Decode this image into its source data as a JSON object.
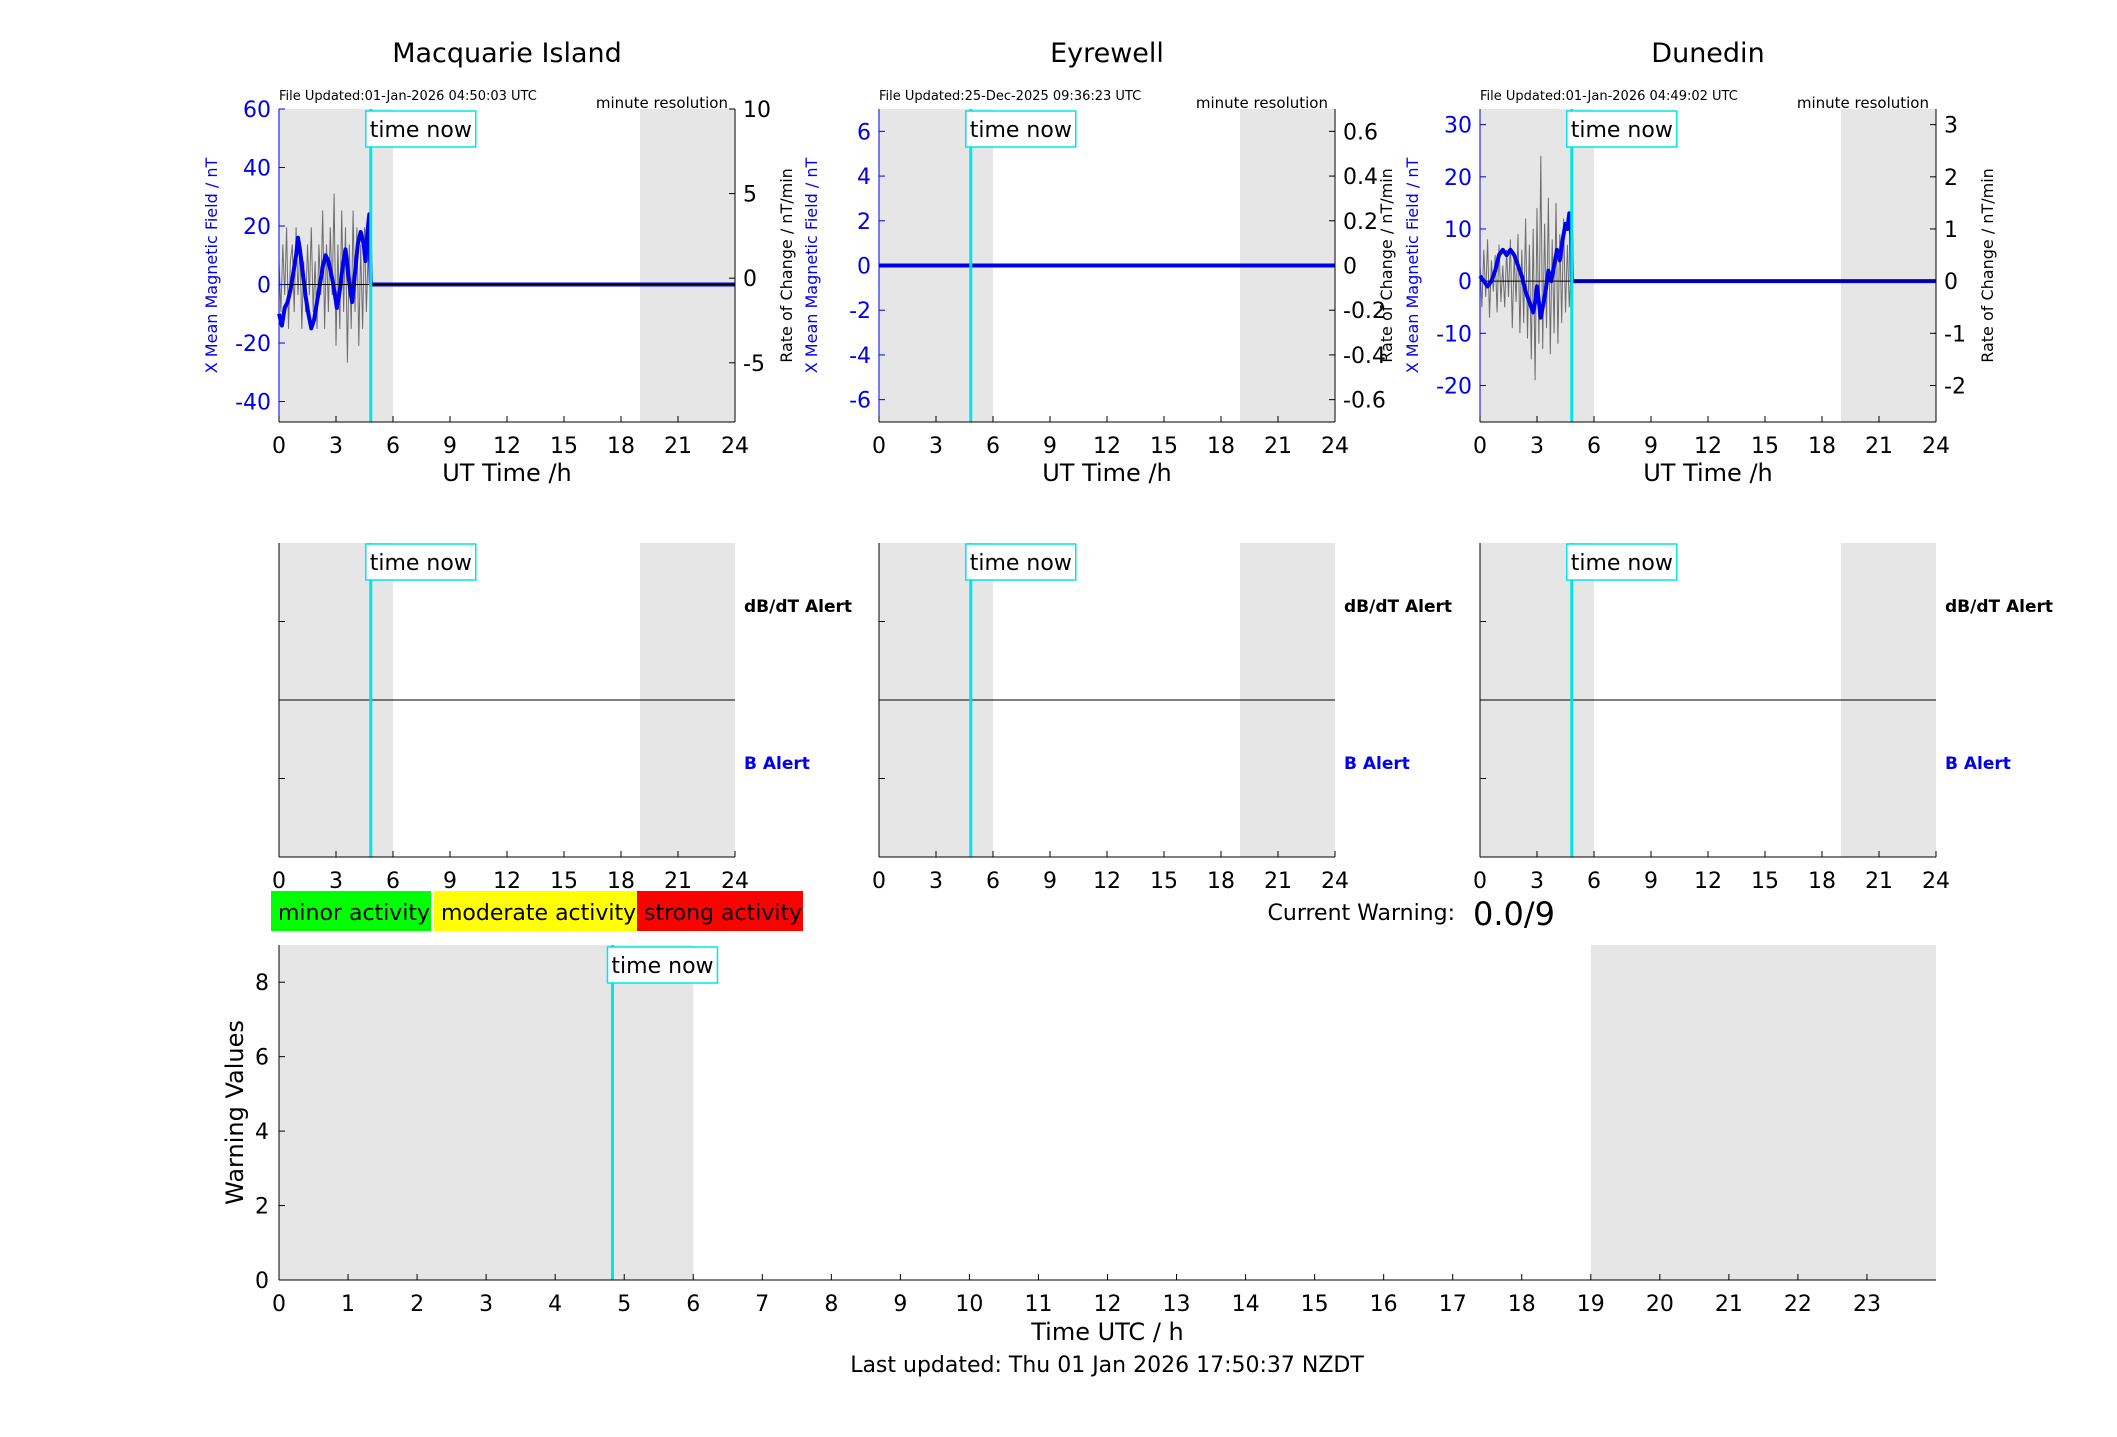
{
  "stations": [
    {
      "title": "Macquarie Island",
      "file_updated": "File Updated:01-Jan-2026 04:50:03 UTC",
      "resolution": "minute resolution",
      "time_now_label": "time now",
      "time_now_h": 4.83,
      "xlabel": "UT Time /h",
      "ylabel_left": "X Mean Magnetic Field / nT",
      "ylabel_right": "Rate of Change / nT/min",
      "ylim_left": [
        -47,
        60
      ],
      "ylim_right": [
        -8.5,
        10
      ],
      "yticks_left": [
        "-40",
        "-20",
        "0",
        "20",
        "40",
        "60"
      ],
      "yticks_right": [
        "-5",
        "0",
        "5",
        "10"
      ],
      "xticks": [
        "0",
        "3",
        "6",
        "9",
        "12",
        "15",
        "18",
        "21",
        "24"
      ],
      "shade": [
        [
          0,
          6
        ],
        [
          19,
          24
        ]
      ],
      "alert_dbdt": "dB/dT Alert",
      "alert_b": "B Alert",
      "field_series": [
        [
          0,
          -10
        ],
        [
          0.15,
          -14
        ],
        [
          0.3,
          -8
        ],
        [
          0.45,
          -6
        ],
        [
          0.6,
          -2
        ],
        [
          0.75,
          4
        ],
        [
          0.9,
          10
        ],
        [
          1.0,
          16
        ],
        [
          1.1,
          12
        ],
        [
          1.25,
          4
        ],
        [
          1.4,
          -4
        ],
        [
          1.55,
          -10
        ],
        [
          1.7,
          -15
        ],
        [
          1.85,
          -12
        ],
        [
          2.0,
          -6
        ],
        [
          2.15,
          0
        ],
        [
          2.3,
          6
        ],
        [
          2.45,
          10
        ],
        [
          2.6,
          8
        ],
        [
          2.8,
          2
        ],
        [
          2.95,
          -4
        ],
        [
          3.05,
          -8
        ],
        [
          3.2,
          -2
        ],
        [
          3.35,
          6
        ],
        [
          3.5,
          12
        ],
        [
          3.6,
          6
        ],
        [
          3.75,
          -2
        ],
        [
          3.85,
          -6
        ],
        [
          4.0,
          4
        ],
        [
          4.15,
          14
        ],
        [
          4.3,
          18
        ],
        [
          4.45,
          14
        ],
        [
          4.55,
          8
        ],
        [
          4.65,
          18
        ],
        [
          4.75,
          24
        ],
        [
          4.83,
          0
        ],
        [
          24,
          0
        ]
      ],
      "roc_series": [
        [
          0,
          1
        ],
        [
          0.1,
          -2
        ],
        [
          0.2,
          2
        ],
        [
          0.3,
          -1
        ],
        [
          0.4,
          3
        ],
        [
          0.5,
          -3
        ],
        [
          0.6,
          1
        ],
        [
          0.7,
          2
        ],
        [
          0.8,
          -2
        ],
        [
          0.9,
          3
        ],
        [
          1.0,
          -1
        ],
        [
          1.1,
          2
        ],
        [
          1.2,
          -3
        ],
        [
          1.3,
          1
        ],
        [
          1.4,
          -2
        ],
        [
          1.5,
          2
        ],
        [
          1.6,
          -1
        ],
        [
          1.7,
          3
        ],
        [
          1.8,
          -2
        ],
        [
          1.9,
          1
        ],
        [
          2.0,
          -3
        ],
        [
          2.1,
          2
        ],
        [
          2.2,
          -1
        ],
        [
          2.3,
          4
        ],
        [
          2.4,
          -3
        ],
        [
          2.5,
          2
        ],
        [
          2.6,
          -2
        ],
        [
          2.7,
          3
        ],
        [
          2.8,
          -1
        ],
        [
          2.9,
          5
        ],
        [
          3.0,
          -4
        ],
        [
          3.1,
          2
        ],
        [
          3.2,
          -3
        ],
        [
          3.3,
          4
        ],
        [
          3.4,
          -2
        ],
        [
          3.5,
          3
        ],
        [
          3.6,
          -5
        ],
        [
          3.7,
          2
        ],
        [
          3.8,
          -3
        ],
        [
          3.9,
          4
        ],
        [
          4.0,
          -2
        ],
        [
          4.1,
          3
        ],
        [
          4.2,
          -4
        ],
        [
          4.3,
          2
        ],
        [
          4.4,
          -3
        ],
        [
          4.5,
          3
        ],
        [
          4.6,
          -2
        ],
        [
          4.7,
          2
        ],
        [
          4.8,
          -1
        ],
        [
          4.83,
          0
        ]
      ]
    },
    {
      "title": "Eyrewell",
      "file_updated": "File Updated:25-Dec-2025 09:36:23 UTC",
      "resolution": "minute resolution",
      "time_now_label": "time now",
      "time_now_h": 4.83,
      "xlabel": "UT Time /h",
      "ylabel_left": "X Mean Magnetic Field / nT",
      "ylabel_right": "Rate of Change / nT/min",
      "ylim_left": [
        -7,
        7
      ],
      "ylim_right": [
        -0.7,
        0.7
      ],
      "yticks_left": [
        "-6",
        "-4",
        "-2",
        "0",
        "2",
        "4",
        "6"
      ],
      "yticks_right": [
        "-0.6",
        "-0.4",
        "-0.2",
        "0",
        "0.2",
        "0.4",
        "0.6"
      ],
      "xticks": [
        "0",
        "3",
        "6",
        "9",
        "12",
        "15",
        "18",
        "21",
        "24"
      ],
      "shade": [
        [
          0,
          6
        ],
        [
          19,
          24
        ]
      ],
      "alert_dbdt": "dB/dT Alert",
      "alert_b": "B Alert",
      "field_series": [
        [
          0,
          0
        ],
        [
          24,
          0
        ]
      ],
      "roc_series": []
    },
    {
      "title": "Dunedin",
      "file_updated": "File Updated:01-Jan-2026 04:49:02 UTC",
      "resolution": "minute resolution",
      "time_now_label": "time now",
      "time_now_h": 4.83,
      "xlabel": "UT Time /h",
      "ylabel_left": "X Mean Magnetic Field / nT",
      "ylabel_right": "Rate of Change / nT/min",
      "ylim_left": [
        -27,
        33
      ],
      "ylim_right": [
        -2.7,
        3.3
      ],
      "yticks_left": [
        "-20",
        "-10",
        "0",
        "10",
        "20",
        "30"
      ],
      "yticks_right": [
        "-2",
        "-1",
        "0",
        "1",
        "2",
        "3"
      ],
      "xticks": [
        "0",
        "3",
        "6",
        "9",
        "12",
        "15",
        "18",
        "21",
        "24"
      ],
      "shade": [
        [
          0,
          6
        ],
        [
          19,
          24
        ]
      ],
      "alert_dbdt": "dB/dT Alert",
      "alert_b": "B Alert",
      "field_series": [
        [
          0,
          1
        ],
        [
          0.2,
          0
        ],
        [
          0.4,
          -1
        ],
        [
          0.6,
          0
        ],
        [
          0.8,
          2
        ],
        [
          1.0,
          5
        ],
        [
          1.2,
          6
        ],
        [
          1.4,
          5
        ],
        [
          1.6,
          6
        ],
        [
          1.8,
          5
        ],
        [
          2.0,
          3
        ],
        [
          2.2,
          1
        ],
        [
          2.4,
          -2
        ],
        [
          2.6,
          -4
        ],
        [
          2.8,
          -6
        ],
        [
          2.9,
          -4
        ],
        [
          3.0,
          -1
        ],
        [
          3.1,
          -4
        ],
        [
          3.2,
          -7
        ],
        [
          3.3,
          -5
        ],
        [
          3.45,
          -2
        ],
        [
          3.6,
          2
        ],
        [
          3.75,
          0
        ],
        [
          3.9,
          3
        ],
        [
          4.05,
          6
        ],
        [
          4.2,
          4
        ],
        [
          4.35,
          8
        ],
        [
          4.5,
          11
        ],
        [
          4.6,
          10
        ],
        [
          4.7,
          13
        ],
        [
          4.8,
          9
        ],
        [
          4.83,
          0
        ],
        [
          24,
          0
        ]
      ],
      "roc_series": [
        [
          0,
          0.3
        ],
        [
          0.1,
          -0.5
        ],
        [
          0.2,
          0.6
        ],
        [
          0.3,
          -0.3
        ],
        [
          0.4,
          0.8
        ],
        [
          0.5,
          -0.7
        ],
        [
          0.6,
          0.4
        ],
        [
          0.7,
          -0.2
        ],
        [
          0.8,
          0.5
        ],
        [
          0.9,
          -0.6
        ],
        [
          1.0,
          0.7
        ],
        [
          1.1,
          -0.4
        ],
        [
          1.2,
          0.3
        ],
        [
          1.3,
          -0.5
        ],
        [
          1.4,
          0.6
        ],
        [
          1.5,
          -0.3
        ],
        [
          1.6,
          0.8
        ],
        [
          1.7,
          -0.9
        ],
        [
          1.8,
          0.5
        ],
        [
          1.9,
          -0.4
        ],
        [
          2.0,
          0.9
        ],
        [
          2.1,
          -1.0
        ],
        [
          2.2,
          0.6
        ],
        [
          2.3,
          -0.8
        ],
        [
          2.4,
          1.2
        ],
        [
          2.5,
          -1.1
        ],
        [
          2.6,
          0.7
        ],
        [
          2.7,
          -1.5
        ],
        [
          2.8,
          1.0
        ],
        [
          2.9,
          -1.9
        ],
        [
          3.0,
          1.4
        ],
        [
          3.1,
          -1.2
        ],
        [
          3.2,
          2.4
        ],
        [
          3.3,
          -1.3
        ],
        [
          3.4,
          1.1
        ],
        [
          3.5,
          -0.9
        ],
        [
          3.6,
          1.6
        ],
        [
          3.7,
          -1.4
        ],
        [
          3.8,
          0.8
        ],
        [
          3.9,
          -1.0
        ],
        [
          4.0,
          1.5
        ],
        [
          4.1,
          -1.2
        ],
        [
          4.2,
          0.9
        ],
        [
          4.3,
          -0.8
        ],
        [
          4.4,
          1.2
        ],
        [
          4.5,
          -0.6
        ],
        [
          4.6,
          0.7
        ],
        [
          4.7,
          -0.5
        ],
        [
          4.8,
          0.3
        ],
        [
          4.83,
          0
        ]
      ]
    }
  ],
  "alert_xticks": [
    "0",
    "3",
    "6",
    "9",
    "12",
    "15",
    "18",
    "21",
    "24"
  ],
  "legend": [
    {
      "label": "minor activity",
      "color": "#00ff00"
    },
    {
      "label": "moderate activity",
      "color": "#ffff00"
    },
    {
      "label": "strong activity",
      "color": "#ff0000"
    }
  ],
  "current_warning": {
    "label": "Current Warning:",
    "value": "0.0/9"
  },
  "chart_data": {
    "type": "line",
    "title": "",
    "xlabel": "Time UTC / h",
    "ylabel": "Warning Values",
    "xlim": [
      0,
      24
    ],
    "ylim": [
      0,
      9
    ],
    "xticks": [
      "0",
      "1",
      "2",
      "3",
      "4",
      "5",
      "6",
      "7",
      "8",
      "9",
      "10",
      "11",
      "12",
      "13",
      "14",
      "15",
      "16",
      "17",
      "18",
      "19",
      "20",
      "21",
      "22",
      "23"
    ],
    "yticks": [
      "0",
      "2",
      "4",
      "6",
      "8"
    ],
    "shade": [
      [
        0,
        6
      ],
      [
        19,
        24
      ]
    ],
    "time_now_h": 4.83,
    "time_now_label": "time now",
    "series": [],
    "grid": false
  },
  "footer": "Last updated: Thu 01 Jan 2026 17:50:37 NZDT"
}
